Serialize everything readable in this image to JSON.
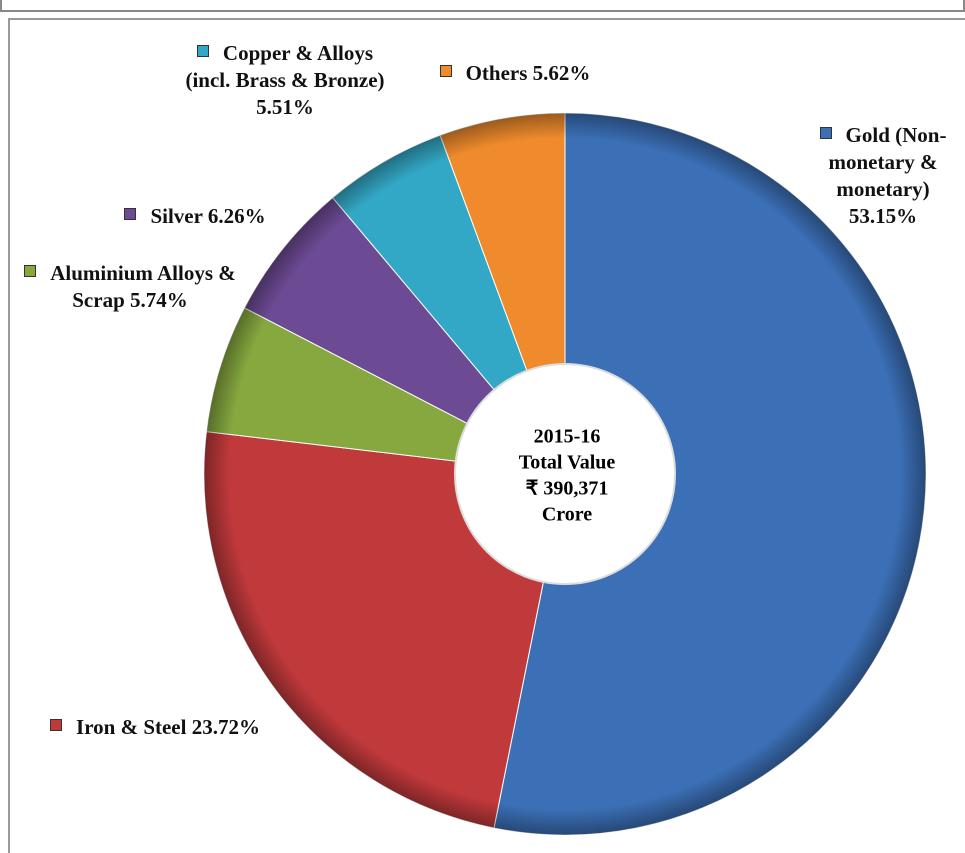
{
  "chart_data": {
    "type": "donut",
    "categories": [
      "Gold (Non-monetary & monetary)",
      "Iron & Steel",
      "Aluminium Alloys & Scrap",
      "Silver",
      "Copper & Alloys (incl. Brass & Bronze)",
      "Others"
    ],
    "values": [
      53.15,
      23.72,
      5.74,
      6.26,
      5.51,
      5.62
    ],
    "value_labels": [
      "53.15%",
      "23.72%",
      "5.74%",
      "6.26%",
      "5.51%",
      "5.62%"
    ],
    "colors": [
      "#3b6fb6",
      "#c0393b",
      "#86a83f",
      "#6c4a94",
      "#33a8c6",
      "#ef8b2c"
    ],
    "center_text": [
      "2015-16",
      "Total Value",
      "₹ 390,371",
      "Crore"
    ]
  }
}
